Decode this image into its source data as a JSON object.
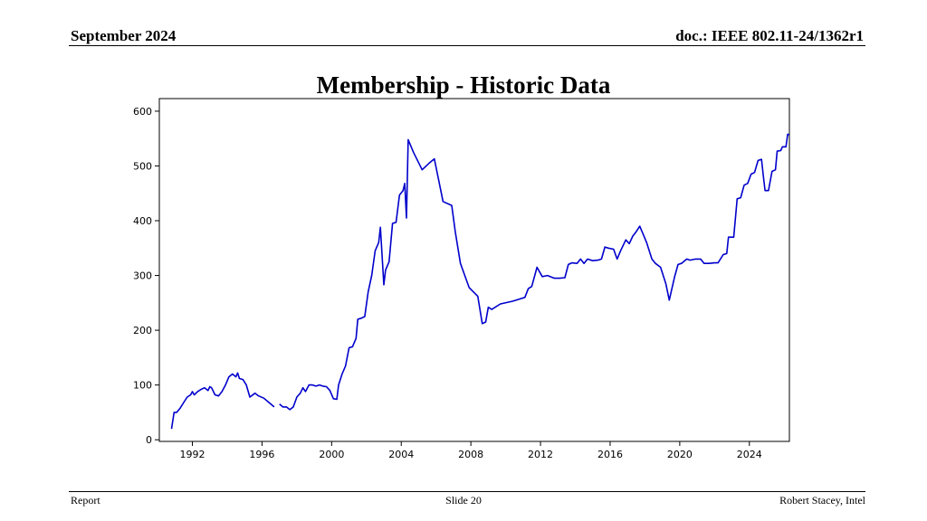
{
  "header": {
    "left": "September 2024",
    "right": "doc.: IEEE 802.11-24/1362r1"
  },
  "slide": {
    "title": "Membership - Historic Data"
  },
  "footer": {
    "left": "Report",
    "center": "Slide 20",
    "right": "Robert Stacey, Intel"
  },
  "chart_data": {
    "type": "line",
    "title": "",
    "xlabel": "",
    "ylabel": "",
    "xlim": [
      1990.1,
      2026.3
    ],
    "ylim": [
      -3,
      623
    ],
    "x_ticks": [
      1992,
      1996,
      2000,
      2004,
      2008,
      2012,
      2016,
      2020,
      2024
    ],
    "y_ticks": [
      0,
      100,
      200,
      300,
      400,
      500,
      600
    ],
    "grid": false,
    "line_color": "#0000cc",
    "series": [
      {
        "segments": [
          [
            [
              1990.8,
              20
            ],
            [
              1990.95,
              50
            ],
            [
              1991.1,
              50
            ],
            [
              1991.3,
              58
            ],
            [
              1991.5,
              68
            ],
            [
              1991.7,
              78
            ],
            [
              1991.9,
              82
            ],
            [
              1992.0,
              88
            ],
            [
              1992.1,
              82
            ],
            [
              1992.3,
              88
            ],
            [
              1992.5,
              92
            ],
            [
              1992.7,
              95
            ],
            [
              1992.9,
              90
            ],
            [
              1993.0,
              97
            ],
            [
              1993.1,
              95
            ],
            [
              1993.3,
              82
            ],
            [
              1993.5,
              80
            ],
            [
              1993.7,
              88
            ],
            [
              1993.9,
              100
            ],
            [
              1994.1,
              115
            ],
            [
              1994.3,
              120
            ],
            [
              1994.5,
              115
            ],
            [
              1994.6,
              122
            ],
            [
              1994.7,
              112
            ],
            [
              1994.9,
              110
            ],
            [
              1995.1,
              100
            ],
            [
              1995.3,
              78
            ],
            [
              1995.6,
              85
            ],
            [
              1995.8,
              80
            ],
            [
              1996.1,
              76
            ],
            [
              1996.4,
              68
            ],
            [
              1996.7,
              60
            ]
          ],
          [
            [
              1997.0,
              65
            ],
            [
              1997.2,
              60
            ],
            [
              1997.4,
              60
            ],
            [
              1997.6,
              55
            ],
            [
              1997.8,
              60
            ],
            [
              1998.0,
              78
            ],
            [
              1998.2,
              85
            ],
            [
              1998.35,
              95
            ],
            [
              1998.5,
              88
            ],
            [
              1998.7,
              100
            ],
            [
              1998.9,
              100
            ],
            [
              1999.1,
              98
            ],
            [
              1999.3,
              100
            ],
            [
              1999.5,
              98
            ],
            [
              1999.7,
              97
            ],
            [
              1999.9,
              90
            ],
            [
              2000.1,
              75
            ],
            [
              2000.3,
              74
            ],
            [
              2000.4,
              100
            ],
            [
              2000.6,
              120
            ],
            [
              2000.8,
              135
            ],
            [
              2001.0,
              168
            ],
            [
              2001.2,
              170
            ],
            [
              2001.4,
              185
            ],
            [
              2001.5,
              220
            ],
            [
              2001.7,
              222
            ],
            [
              2001.9,
              225
            ],
            [
              2002.1,
              270
            ],
            [
              2002.3,
              300
            ],
            [
              2002.5,
              345
            ],
            [
              2002.7,
              360
            ],
            [
              2002.8,
              388
            ],
            [
              2003.0,
              283
            ],
            [
              2003.1,
              310
            ],
            [
              2003.3,
              325
            ],
            [
              2003.5,
              395
            ],
            [
              2003.7,
              397
            ],
            [
              2003.9,
              447
            ],
            [
              2004.1,
              455
            ],
            [
              2004.2,
              468
            ],
            [
              2004.3,
              405
            ],
            [
              2004.4,
              548
            ],
            [
              2004.7,
              525
            ],
            [
              2005.2,
              493
            ],
            [
              2005.6,
              505
            ],
            [
              2005.9,
              513
            ],
            [
              2006.4,
              435
            ],
            [
              2006.9,
              428
            ],
            [
              2007.1,
              380
            ],
            [
              2007.4,
              322
            ],
            [
              2007.9,
              278
            ],
            [
              2008.4,
              262
            ],
            [
              2008.65,
              212
            ],
            [
              2008.85,
              215
            ],
            [
              2009.0,
              242
            ],
            [
              2009.2,
              238
            ],
            [
              2009.7,
              248
            ],
            [
              2010.4,
              253
            ],
            [
              2010.9,
              258
            ],
            [
              2011.1,
              260
            ],
            [
              2011.3,
              276
            ],
            [
              2011.5,
              280
            ],
            [
              2011.8,
              315
            ],
            [
              2012.1,
              298
            ],
            [
              2012.4,
              300
            ],
            [
              2012.8,
              295
            ],
            [
              2013.1,
              295
            ],
            [
              2013.4,
              296
            ],
            [
              2013.6,
              320
            ],
            [
              2013.8,
              323
            ],
            [
              2014.1,
              322
            ],
            [
              2014.3,
              330
            ],
            [
              2014.5,
              322
            ],
            [
              2014.7,
              330
            ],
            [
              2015.0,
              327
            ],
            [
              2015.3,
              328
            ],
            [
              2015.5,
              330
            ],
            [
              2015.7,
              352
            ],
            [
              2015.9,
              350
            ],
            [
              2016.2,
              348
            ],
            [
              2016.4,
              330
            ],
            [
              2016.6,
              345
            ],
            [
              2016.9,
              365
            ],
            [
              2017.1,
              358
            ],
            [
              2017.3,
              372
            ],
            [
              2017.5,
              380
            ],
            [
              2017.7,
              390
            ],
            [
              2017.9,
              375
            ],
            [
              2018.1,
              360
            ],
            [
              2018.4,
              330
            ],
            [
              2018.6,
              322
            ],
            [
              2018.9,
              315
            ],
            [
              2019.2,
              285
            ],
            [
              2019.4,
              255
            ],
            [
              2019.7,
              297
            ],
            [
              2019.9,
              320
            ],
            [
              2020.1,
              322
            ],
            [
              2020.4,
              330
            ],
            [
              2020.6,
              328
            ],
            [
              2020.9,
              330
            ],
            [
              2021.2,
              330
            ],
            [
              2021.4,
              322
            ],
            [
              2021.7,
              322
            ],
            [
              2022.0,
              323
            ],
            [
              2022.2,
              323
            ],
            [
              2022.5,
              338
            ],
            [
              2022.7,
              340
            ],
            [
              2022.8,
              370
            ],
            [
              2023.1,
              370
            ],
            [
              2023.3,
              440
            ],
            [
              2023.5,
              442
            ],
            [
              2023.7,
              465
            ],
            [
              2023.9,
              468
            ],
            [
              2024.1,
              485
            ],
            [
              2024.3,
              488
            ],
            [
              2024.5,
              510
            ],
            [
              2024.7,
              512
            ],
            [
              2024.8,
              482
            ],
            [
              2024.9,
              455
            ],
            [
              2025.1,
              455
            ],
            [
              2025.3,
              490
            ],
            [
              2025.5,
              493
            ],
            [
              2025.6,
              527
            ],
            [
              2025.8,
              528
            ],
            [
              2025.9,
              535
            ],
            [
              2026.1,
              535
            ],
            [
              2026.2,
              558
            ],
            [
              2026.3,
              557
            ]
          ]
        ]
      }
    ]
  }
}
